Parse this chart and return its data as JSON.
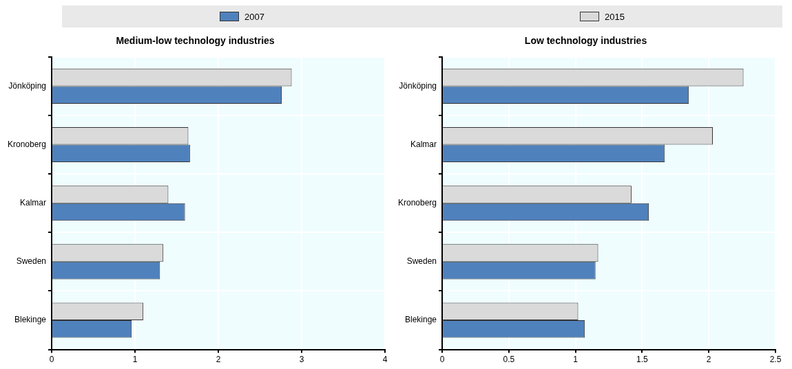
{
  "chart_data": [
    {
      "type": "bar",
      "orientation": "horizontal",
      "title": "Medium-low technology industries",
      "categories": [
        "Jönköping",
        "Kronoberg",
        "Kalmar",
        "Sweden",
        "Blekinge"
      ],
      "series": [
        {
          "name": "2007",
          "color": "#4f81bd",
          "values": [
            2.76,
            1.66,
            1.6,
            1.3,
            0.96
          ]
        },
        {
          "name": "2015",
          "color": "#dadada",
          "values": [
            2.88,
            1.64,
            1.4,
            1.34,
            1.1
          ]
        }
      ],
      "xlim": [
        0,
        4
      ],
      "xticks": [
        0,
        1,
        2,
        3,
        4
      ],
      "grid": true,
      "legend": "top"
    },
    {
      "type": "bar",
      "orientation": "horizontal",
      "title": "Low technology industries",
      "categories": [
        "Jönköping",
        "Kalmar",
        "Kronoberg",
        "Sweden",
        "Blekinge"
      ],
      "series": [
        {
          "name": "2007",
          "color": "#4f81bd",
          "values": [
            1.85,
            1.67,
            1.55,
            1.15,
            1.07
          ]
        },
        {
          "name": "2015",
          "color": "#dadada",
          "values": [
            2.26,
            2.03,
            1.42,
            1.17,
            1.02
          ]
        }
      ],
      "xlim": [
        0,
        2.5
      ],
      "xticks": [
        0,
        0.5,
        1,
        1.5,
        2,
        2.5
      ],
      "grid": true,
      "legend": "top"
    }
  ]
}
